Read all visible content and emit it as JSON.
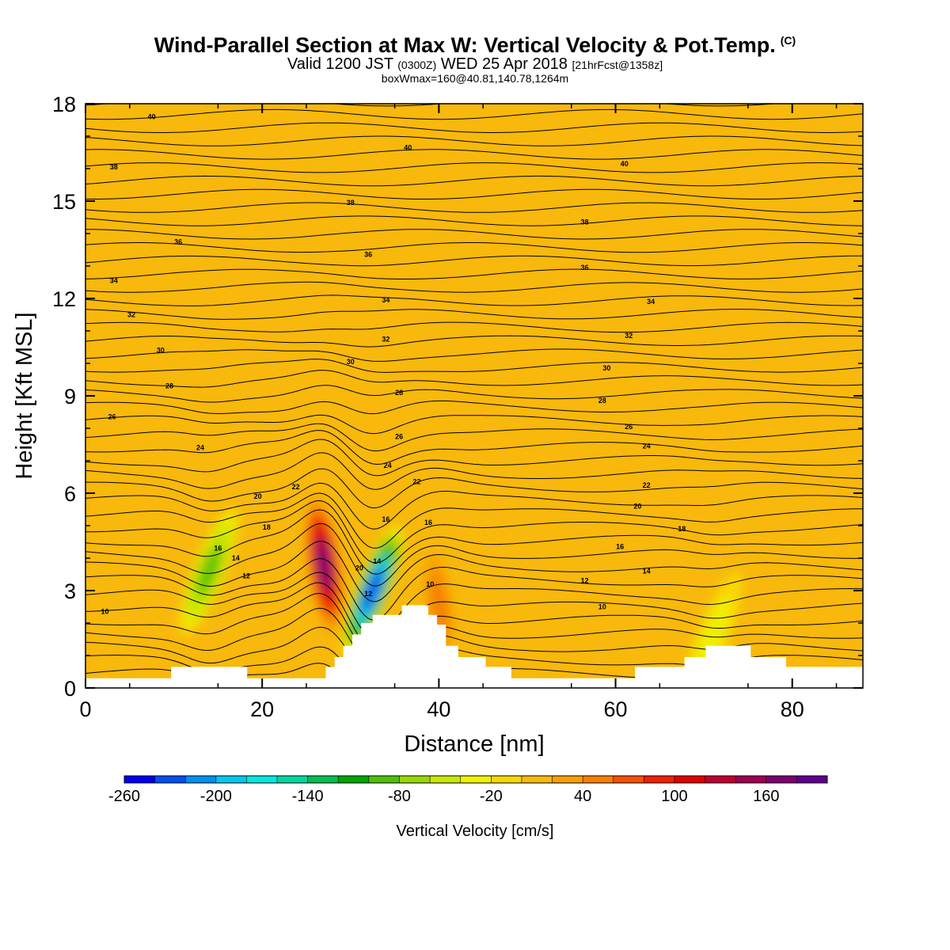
{
  "title": {
    "main": "Wind-Parallel Section at Max W: Vertical Velocity & Pot.Temp.",
    "copyright": "(C)",
    "valid_prefix": "Valid 1200 JST",
    "valid_utc": "(0300Z)",
    "valid_date": "WED 25 Apr 2018",
    "forecast": "[21hrFcst@1358z]",
    "box_info": "boxWmax=160@40.81,140.78,1264m"
  },
  "colors": {
    "background_fill": "#F8B80C",
    "terrain": "#ffffff",
    "contour": "#000000"
  },
  "chart_data": {
    "type": "heatmap",
    "xlabel": "Distance [nm]",
    "ylabel": "Height [Kft MSL]",
    "xlim": [
      0,
      88
    ],
    "ylim": [
      0,
      18
    ],
    "x_ticks": [
      "0",
      "20",
      "40",
      "60",
      "80"
    ],
    "y_ticks": [
      "0",
      "3",
      "6",
      "9",
      "12",
      "15",
      "18"
    ],
    "colorbar": {
      "label": "Vertical Velocity [cm/s]",
      "tick_labels": [
        "-260",
        "-200",
        "-140",
        "-80",
        "-20",
        "40",
        "100",
        "160"
      ],
      "tick_values": [
        -260,
        -200,
        -140,
        -80,
        -20,
        40,
        100,
        160
      ],
      "bins": [
        -260,
        -240,
        -220,
        -200,
        -180,
        -160,
        -140,
        -120,
        -100,
        -80,
        -60,
        -40,
        -20,
        0,
        20,
        40,
        60,
        80,
        100,
        120,
        140,
        160,
        180
      ],
      "colors": [
        "#0000F0",
        "#0050F0",
        "#0090F0",
        "#00C8F0",
        "#00E8E0",
        "#00D8A0",
        "#00C050",
        "#00A800",
        "#50C000",
        "#98D800",
        "#C8E800",
        "#F0F000",
        "#F8D800",
        "#F8B80C",
        "#F8A000",
        "#F88000",
        "#F85000",
        "#F02000",
        "#E00000",
        "#C00030",
        "#A00050",
        "#800070",
        "#600090"
      ]
    },
    "vertical_velocity_features": [
      {
        "x": 14.0,
        "y": 3.6,
        "value": -85
      },
      {
        "x": 27.0,
        "y": 3.8,
        "value": 160
      },
      {
        "x": 32.5,
        "y": 3.0,
        "value": -230
      },
      {
        "x": 40.0,
        "y": 2.6,
        "value": 50
      },
      {
        "x": 71.0,
        "y": 1.6,
        "value": -40
      }
    ],
    "terrain_profile": {
      "x": [
        0,
        9.7,
        9.7,
        18.3,
        18.3,
        19.8,
        19.8,
        27.2,
        27.2,
        28.2,
        28.2,
        29.2,
        29.2,
        30.2,
        30.2,
        31.2,
        31.2,
        32.5,
        32.5,
        35.8,
        35.8,
        38.8,
        38.8,
        39.8,
        39.8,
        40.8,
        40.8,
        42.2,
        42.2,
        45.3,
        45.3,
        48.2,
        48.2,
        62.2,
        62.2,
        67.8,
        67.8,
        70.2,
        70.2,
        75.3,
        75.3,
        79.3,
        79.3,
        88
      ],
      "y": [
        0.3,
        0.3,
        0.65,
        0.65,
        0.3,
        0.3,
        0.3,
        0.3,
        0.65,
        0.65,
        0.95,
        0.95,
        1.3,
        1.3,
        1.65,
        1.65,
        2.0,
        2.0,
        2.25,
        2.25,
        2.55,
        2.55,
        2.25,
        2.25,
        1.95,
        1.95,
        1.3,
        1.3,
        0.95,
        0.95,
        0.65,
        0.65,
        0.3,
        0.3,
        0.65,
        0.65,
        0.95,
        0.95,
        1.3,
        1.3,
        0.95,
        0.95,
        0.65,
        0.65
      ]
    },
    "potential_temperature_labels": [
      {
        "x": 2.2,
        "y": 2.35,
        "text": "10"
      },
      {
        "x": 39.0,
        "y": 3.2,
        "text": "10"
      },
      {
        "x": 58.5,
        "y": 2.5,
        "text": "10"
      },
      {
        "x": 18.2,
        "y": 3.45,
        "text": "12"
      },
      {
        "x": 32.0,
        "y": 2.9,
        "text": "12"
      },
      {
        "x": 56.5,
        "y": 3.3,
        "text": "12"
      },
      {
        "x": 17.0,
        "y": 4.0,
        "text": "14"
      },
      {
        "x": 33.0,
        "y": 3.9,
        "text": "14"
      },
      {
        "x": 63.5,
        "y": 3.6,
        "text": "14"
      },
      {
        "x": 15.0,
        "y": 4.3,
        "text": "16"
      },
      {
        "x": 34.0,
        "y": 5.2,
        "text": "16"
      },
      {
        "x": 38.8,
        "y": 5.1,
        "text": "16"
      },
      {
        "x": 60.5,
        "y": 4.35,
        "text": "16"
      },
      {
        "x": 20.5,
        "y": 4.95,
        "text": "18"
      },
      {
        "x": 67.5,
        "y": 4.9,
        "text": "18"
      },
      {
        "x": 31.0,
        "y": 3.7,
        "text": "20"
      },
      {
        "x": 19.5,
        "y": 5.9,
        "text": "20"
      },
      {
        "x": 62.5,
        "y": 5.6,
        "text": "20"
      },
      {
        "x": 23.8,
        "y": 6.2,
        "text": "22"
      },
      {
        "x": 37.5,
        "y": 6.35,
        "text": "22"
      },
      {
        "x": 63.5,
        "y": 6.25,
        "text": "22"
      },
      {
        "x": 13.0,
        "y": 7.4,
        "text": "24"
      },
      {
        "x": 34.2,
        "y": 6.85,
        "text": "24"
      },
      {
        "x": 63.5,
        "y": 7.45,
        "text": "24"
      },
      {
        "x": 3.0,
        "y": 8.35,
        "text": "26"
      },
      {
        "x": 35.5,
        "y": 7.75,
        "text": "26"
      },
      {
        "x": 61.5,
        "y": 8.05,
        "text": "26"
      },
      {
        "x": 9.5,
        "y": 9.3,
        "text": "28"
      },
      {
        "x": 35.5,
        "y": 9.1,
        "text": "28"
      },
      {
        "x": 58.5,
        "y": 8.85,
        "text": "28"
      },
      {
        "x": 8.5,
        "y": 10.4,
        "text": "30"
      },
      {
        "x": 30.0,
        "y": 10.05,
        "text": "30"
      },
      {
        "x": 59.0,
        "y": 9.85,
        "text": "30"
      },
      {
        "x": 5.2,
        "y": 11.5,
        "text": "32"
      },
      {
        "x": 34.0,
        "y": 10.75,
        "text": "32"
      },
      {
        "x": 61.5,
        "y": 10.85,
        "text": "32"
      },
      {
        "x": 3.2,
        "y": 12.55,
        "text": "34"
      },
      {
        "x": 34.0,
        "y": 11.95,
        "text": "34"
      },
      {
        "x": 64.0,
        "y": 11.9,
        "text": "34"
      },
      {
        "x": 10.5,
        "y": 13.75,
        "text": "36"
      },
      {
        "x": 32.0,
        "y": 13.35,
        "text": "36"
      },
      {
        "x": 56.5,
        "y": 12.95,
        "text": "36"
      },
      {
        "x": 3.2,
        "y": 16.05,
        "text": "38"
      },
      {
        "x": 30.0,
        "y": 14.95,
        "text": "38"
      },
      {
        "x": 56.5,
        "y": 14.35,
        "text": "38"
      },
      {
        "x": 7.5,
        "y": 17.6,
        "text": "40"
      },
      {
        "x": 36.5,
        "y": 16.65,
        "text": "40"
      },
      {
        "x": 61.0,
        "y": 16.15,
        "text": "40"
      }
    ]
  }
}
